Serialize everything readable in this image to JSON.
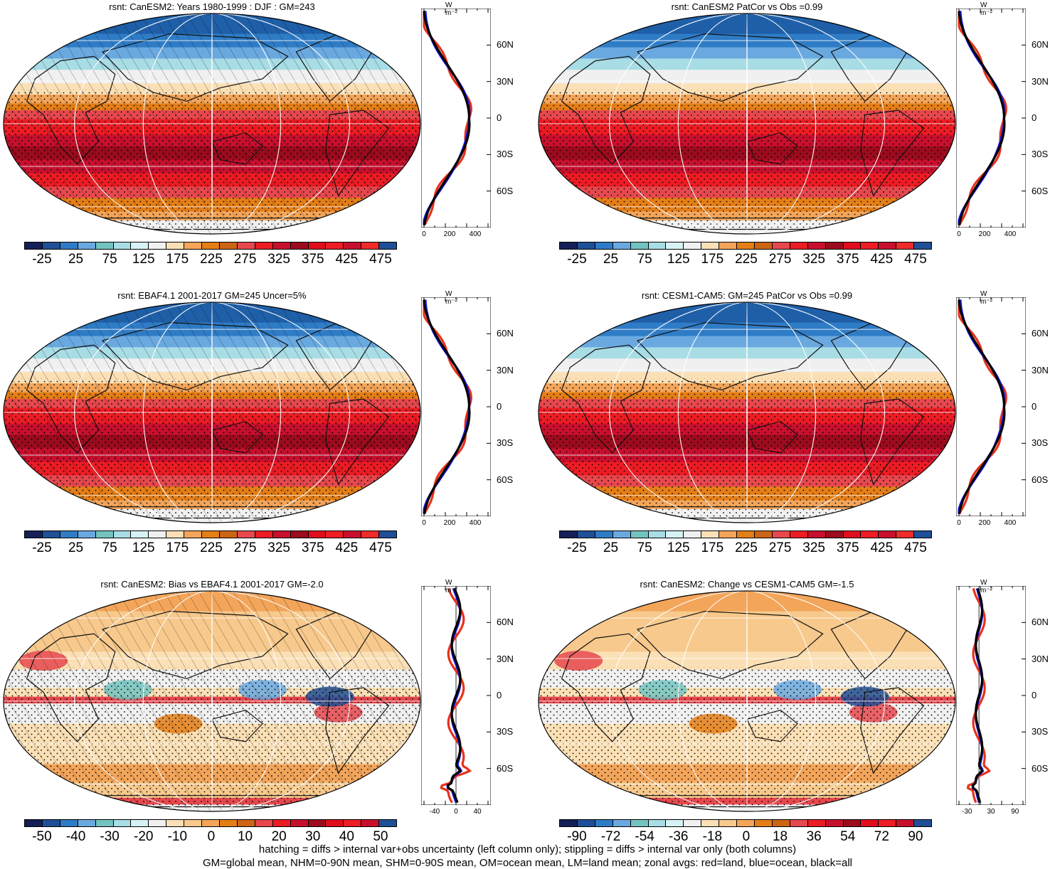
{
  "colors": {
    "cold": [
      "#151f57",
      "#1f4f96",
      "#2f7cc6",
      "#6aa9e0",
      "#73c4c1",
      "#a8dde6",
      "#d6f2f4",
      "#f0f0f0"
    ],
    "warm": [
      "#fbe0b6",
      "#f3a55a",
      "#e47e17",
      "#cc6415",
      "#e6484e",
      "#ec1c24",
      "#c8102e",
      "#9c0b1e",
      "#e00d1d",
      "#ee1c24",
      "#1f4f96"
    ],
    "full": [
      "#151f57",
      "#1f4f96",
      "#2f7cc6",
      "#6aa9e0",
      "#73c4c1",
      "#a8dde6",
      "#d6f2f4",
      "#f0f0f0",
      "#fbe0b6",
      "#f3a55a",
      "#e47e17",
      "#cc6415",
      "#e6484e",
      "#ec1c24",
      "#c8102e",
      "#9c0b1e",
      "#e00d1d",
      "#ee1c24",
      "#c8102e",
      "#ee2a2a",
      "#1f4f96"
    ],
    "diff": [
      "#151f57",
      "#1f4f96",
      "#2f7cc6",
      "#6aa9e0",
      "#73c4c1",
      "#a8dde6",
      "#d6f2f4",
      "#f0f0f0",
      "#fbe0b6",
      "#f7c98c",
      "#f3a55a",
      "#e47e17",
      "#cc6415",
      "#e6484e",
      "#ec1c24",
      "#c8102e",
      "#9c0b1e",
      "#e00d1d",
      "#ee1c24",
      "#c8102e",
      "#1f4f96"
    ],
    "land": "#e8311a",
    "ocean": "#1616e0",
    "all": "#000000"
  },
  "panels": [
    {
      "title": "rsnt: CanESM2: Years 1980-1999 : DJF : GM=243",
      "kind": "clim",
      "cb_labels": [
        "-25",
        "25",
        "75",
        "125",
        "175",
        "225",
        "275",
        "325",
        "375",
        "425",
        "475"
      ],
      "prof_xticks": [
        "0",
        "200",
        "400"
      ],
      "prof_xrange": [
        0,
        500
      ],
      "unit": "W m⁻²",
      "lat_labels": [
        "60N",
        "30N",
        "0",
        "30S",
        "60S"
      ]
    },
    {
      "title": "rsnt: CanESM2 PatCor vs Obs =0.99",
      "kind": "clim",
      "cb_labels": [
        "-25",
        "25",
        "75",
        "125",
        "175",
        "225",
        "275",
        "325",
        "375",
        "425",
        "475"
      ],
      "prof_xticks": [
        "0",
        "200",
        "400"
      ],
      "prof_xrange": [
        0,
        500
      ],
      "unit": "W m⁻²",
      "lat_labels": [
        "60N",
        "30N",
        "0",
        "30S",
        "60S"
      ]
    },
    {
      "title": "rsnt: EBAF4.1 2001-2017 GM=245 Uncer=5%",
      "kind": "clim",
      "cb_labels": [
        "-25",
        "25",
        "75",
        "125",
        "175",
        "225",
        "275",
        "325",
        "375",
        "425",
        "475"
      ],
      "prof_xticks": [
        "0",
        "200",
        "400"
      ],
      "prof_xrange": [
        0,
        500
      ],
      "unit": "W m⁻²",
      "lat_labels": [
        "60N",
        "30N",
        "0",
        "30S",
        "60S"
      ]
    },
    {
      "title": "rsnt: CESM1-CAM5: GM=245 PatCor vs Obs =0.99",
      "kind": "clim",
      "cb_labels": [
        "-25",
        "25",
        "75",
        "125",
        "175",
        "225",
        "275",
        "325",
        "375",
        "425",
        "475"
      ],
      "prof_xticks": [
        "0",
        "200",
        "400"
      ],
      "prof_xrange": [
        0,
        500
      ],
      "unit": "W m⁻²",
      "lat_labels": [
        "60N",
        "30N",
        "0",
        "30S",
        "60S"
      ]
    },
    {
      "title": "rsnt: CanESM2: Bias vs EBAF4.1 2001-2017 GM=-2.0",
      "kind": "diff",
      "cb_labels": [
        "-50",
        "-40",
        "-30",
        "-20",
        "-10",
        "0",
        "10",
        "20",
        "30",
        "40",
        "50"
      ],
      "prof_xticks": [
        "-40",
        "0",
        "40"
      ],
      "prof_xrange": [
        -60,
        60
      ],
      "unit": "W m⁻²",
      "lat_labels": [
        "60N",
        "30N",
        "0",
        "30S",
        "60S"
      ]
    },
    {
      "title": "rsnt: CanESM2: Change vs CESM1-CAM5 GM=-1.5",
      "kind": "diff",
      "cb_labels": [
        "-90",
        "-72",
        "-54",
        "-36",
        "-18",
        "0",
        "18",
        "36",
        "54",
        "72",
        "90"
      ],
      "prof_xticks": [
        "-30",
        "30",
        "90"
      ],
      "prof_xrange": [
        -50,
        110
      ],
      "unit": "W m⁻²",
      "lat_labels": [
        "60N",
        "30N",
        "0",
        "30S",
        "60S"
      ]
    }
  ],
  "footer": {
    "line1": "hatching = diffs > internal var+obs uncertainty (left column only); stippling = diffs > internal var only (both columns)",
    "line2": "GM=global mean, NHM=0-90N mean, SHM=0-90S mean, OM=ocean mean, LM=land mean; zonal avgs: red=land, blue=ocean, black=all"
  }
}
